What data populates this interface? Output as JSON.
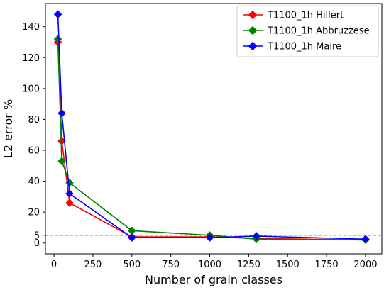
{
  "chart_data": {
    "type": "line",
    "xlabel": "Number of grain classes",
    "ylabel": "L2 error %",
    "xlim": [
      -55,
      2105
    ],
    "ylim": [
      -7,
      155
    ],
    "x_ticks": [
      0,
      250,
      500,
      750,
      1000,
      1250,
      1500,
      1750,
      2000
    ],
    "y_ticks": [
      0,
      5,
      20,
      40,
      60,
      80,
      100,
      120,
      140
    ],
    "reference_line": {
      "y": 5,
      "style": "dashed",
      "color": "#555555"
    },
    "legend_position": "top-right",
    "grid": false,
    "series": [
      {
        "name": "T1100_1h Hillert",
        "color": "#ff0000",
        "marker": "diamond",
        "x": [
          25,
          50,
          100,
          500,
          1000,
          1300,
          2000
        ],
        "y": [
          130,
          66,
          26,
          4,
          4,
          3,
          2
        ]
      },
      {
        "name": "T1100_1h Abbruzzese",
        "color": "#008000",
        "marker": "diamond",
        "x": [
          25,
          50,
          100,
          500,
          1000,
          1300,
          2000
        ],
        "y": [
          132,
          53,
          39,
          8,
          5,
          2.5,
          2
        ]
      },
      {
        "name": "T1100_1h Maire",
        "color": "#0000ff",
        "marker": "diamond",
        "x": [
          25,
          50,
          100,
          500,
          1000,
          1300,
          2000
        ],
        "y": [
          148,
          84,
          32,
          3.5,
          3.5,
          4.5,
          2.5
        ]
      }
    ]
  }
}
